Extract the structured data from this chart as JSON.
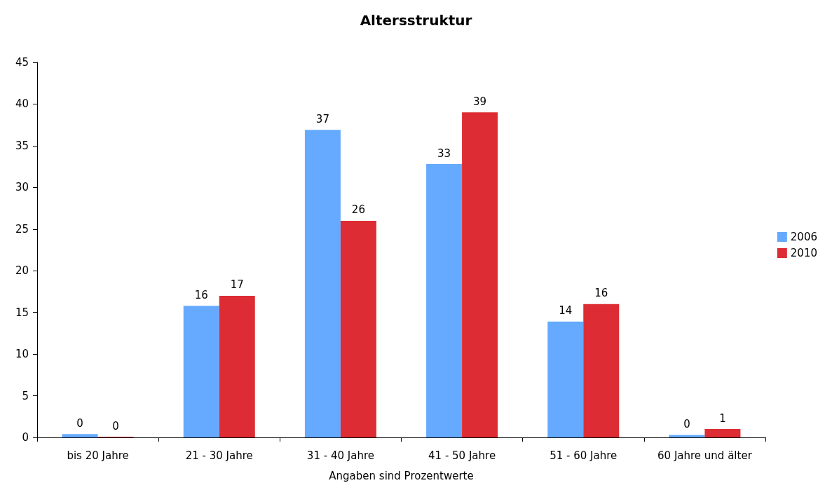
{
  "chart_data": {
    "type": "bar",
    "title": "Altersstruktur",
    "xlabel": "Angaben sind Prozentwerte",
    "categories": [
      "bis 20 Jahre",
      "21 - 30 Jahre",
      "31 - 40 Jahre",
      "41 - 50 Jahre",
      "51 - 60 Jahre",
      "60 Jahre und älter"
    ],
    "series": [
      {
        "name": "2006",
        "color": "#66aaff",
        "values": [
          0.4,
          15.8,
          36.9,
          32.8,
          13.9,
          0.3
        ],
        "value_labels": [
          "0",
          "16",
          "37",
          "33",
          "14",
          "0"
        ]
      },
      {
        "name": "2010",
        "color": "#dd2c33",
        "values": [
          0,
          17,
          26,
          39,
          16,
          1
        ],
        "value_labels": [
          "0",
          "17",
          "26",
          "39",
          "16",
          "1"
        ]
      }
    ],
    "ylim": [
      0,
      45
    ],
    "yticks": [
      0,
      5,
      10,
      15,
      20,
      25,
      30,
      35,
      40,
      45
    ],
    "grid": false,
    "legend": "right"
  }
}
